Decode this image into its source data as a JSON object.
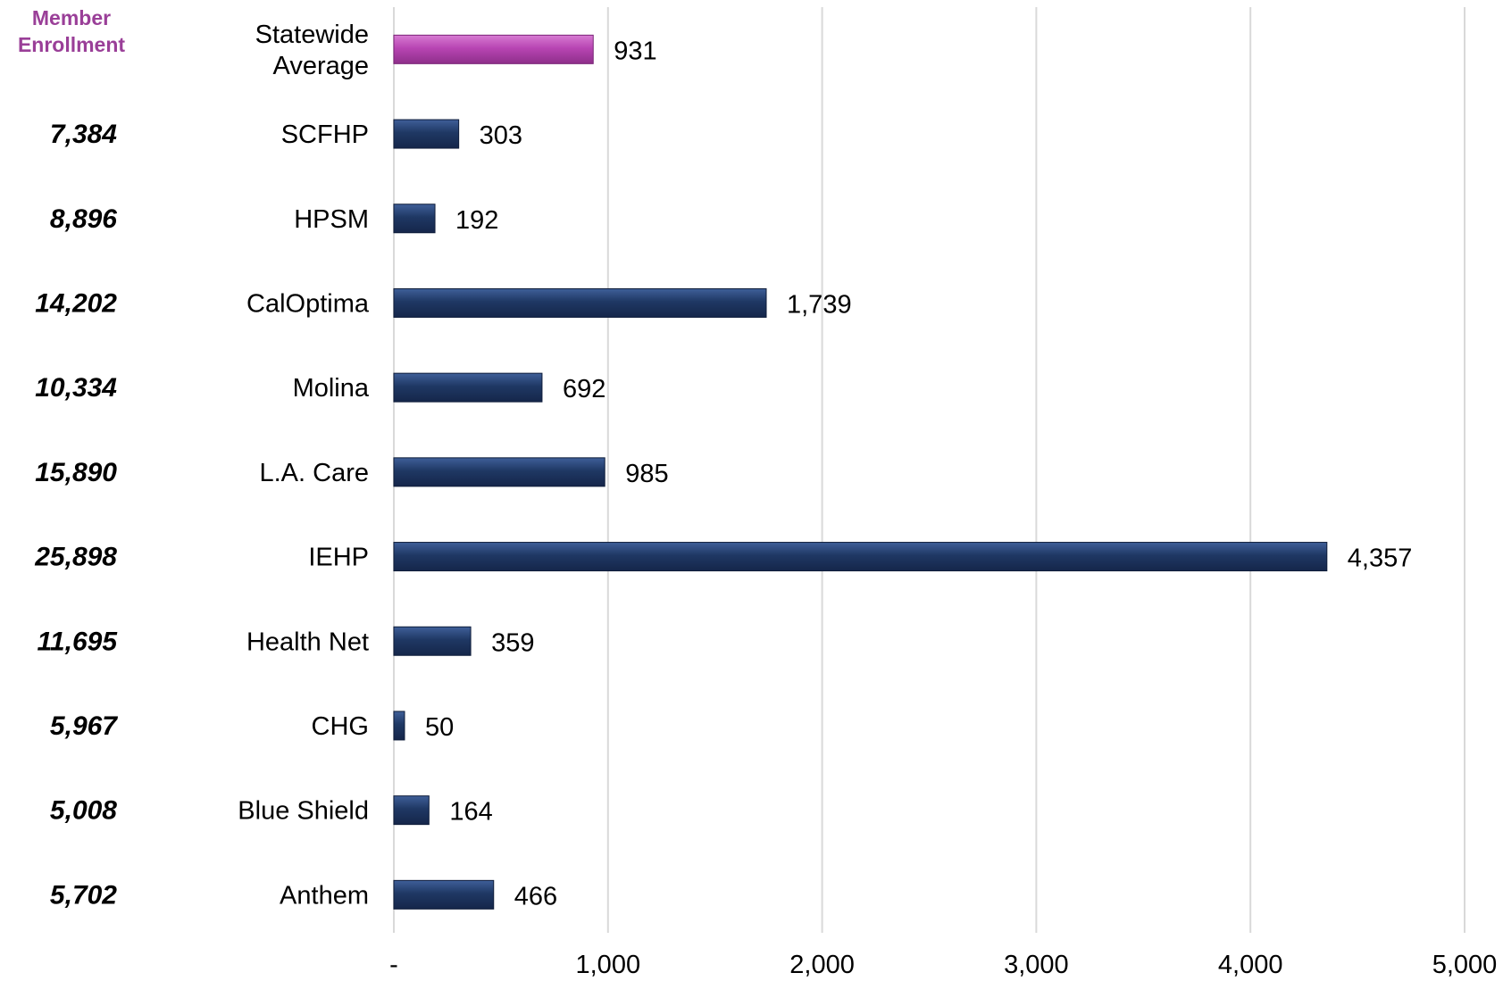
{
  "enrollment_header": [
    "Member",
    "Enrollment"
  ],
  "colors": {
    "header": "#9a3f98",
    "bar": "#1f3864",
    "bar_highlight": "#b845b3",
    "grid": "#d9d9d9"
  },
  "chart_data": {
    "type": "bar",
    "orientation": "horizontal",
    "categories": [
      [
        "Statewide",
        "Average"
      ],
      [
        "SCFHP"
      ],
      [
        "HPSM"
      ],
      [
        "CalOptima"
      ],
      [
        "Molina"
      ],
      [
        "L.A. Care"
      ],
      [
        "IEHP"
      ],
      [
        "Health Net"
      ],
      [
        "CHG"
      ],
      [
        "Blue Shield"
      ],
      [
        "Anthem"
      ]
    ],
    "values": [
      931,
      303,
      192,
      1739,
      692,
      985,
      4357,
      359,
      50,
      164,
      466
    ],
    "data_labels": [
      "931",
      "303",
      "192",
      "1,739",
      "692",
      "985",
      "4,357",
      "359",
      "50",
      "164",
      "466"
    ],
    "member_enrollment": [
      "",
      "7,384",
      "8,896",
      "14,202",
      "10,334",
      "15,890",
      "25,898",
      "11,695",
      "5,967",
      "5,008",
      "5,702"
    ],
    "highlight_index": 0,
    "xlim": [
      0,
      5000
    ],
    "x_ticks": [
      0,
      1000,
      2000,
      3000,
      4000,
      5000
    ],
    "x_tick_labels": [
      "-",
      "1,000",
      "2,000",
      "3,000",
      "4,000",
      "5,000"
    ],
    "grid": true,
    "title": "",
    "xlabel": "",
    "ylabel": ""
  }
}
